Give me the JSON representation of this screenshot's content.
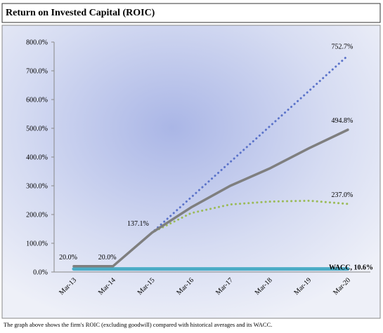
{
  "chart_data": {
    "type": "line",
    "title": "Return on Invested Capital (ROIC)",
    "caption": "The graph above shows the firm's ROIC (excluding goodwill) compared with historical averages and its WACC.",
    "categories": [
      "Mar-13",
      "Mar-14",
      "Mar-15",
      "Mar-16",
      "Mar-17",
      "Mar-18",
      "Mar-19",
      "Mar-20"
    ],
    "ylim": [
      0,
      800
    ],
    "yticks": [
      {
        "value": 0,
        "label": "0.0%"
      },
      {
        "value": 100,
        "label": "100.0%"
      },
      {
        "value": 200,
        "label": "200.0%"
      },
      {
        "value": 300,
        "label": "300.0%"
      },
      {
        "value": 400,
        "label": "400.0%"
      },
      {
        "value": 500,
        "label": "500.0%"
      },
      {
        "value": 600,
        "label": "600.0%"
      },
      {
        "value": 700,
        "label": "700.0%"
      },
      {
        "value": 800,
        "label": "800.0%"
      }
    ],
    "grid": false,
    "series": [
      {
        "color": "#4bacc6",
        "style": "solid",
        "values": [
          10.6,
          10.6,
          10.6,
          10.6,
          10.6,
          10.6,
          10.6,
          10.6
        ],
        "value_labels": [
          null,
          null,
          null,
          null,
          null,
          null,
          null,
          "WACC, 10.6%"
        ]
      },
      {
        "color": "#5b73c9",
        "style": "dotted",
        "values": [
          20,
          20,
          137.1,
          260,
          383,
          506,
          629,
          752.7
        ],
        "value_labels": [
          null,
          null,
          null,
          null,
          null,
          null,
          null,
          "752.7%"
        ]
      },
      {
        "color": "#9bbb59",
        "style": "dotted",
        "values": [
          20,
          20,
          137.1,
          205,
          235,
          245,
          248,
          237.0
        ],
        "value_labels": [
          null,
          null,
          null,
          null,
          null,
          null,
          null,
          "237.0%"
        ]
      },
      {
        "color": "#7f7f7f",
        "style": "solid",
        "values": [
          20,
          20,
          137.1,
          225,
          300,
          360,
          430,
          494.8
        ],
        "value_labels": [
          "20.0%",
          "20.0%",
          "137.1%",
          null,
          null,
          null,
          null,
          "494.8%"
        ]
      }
    ]
  }
}
